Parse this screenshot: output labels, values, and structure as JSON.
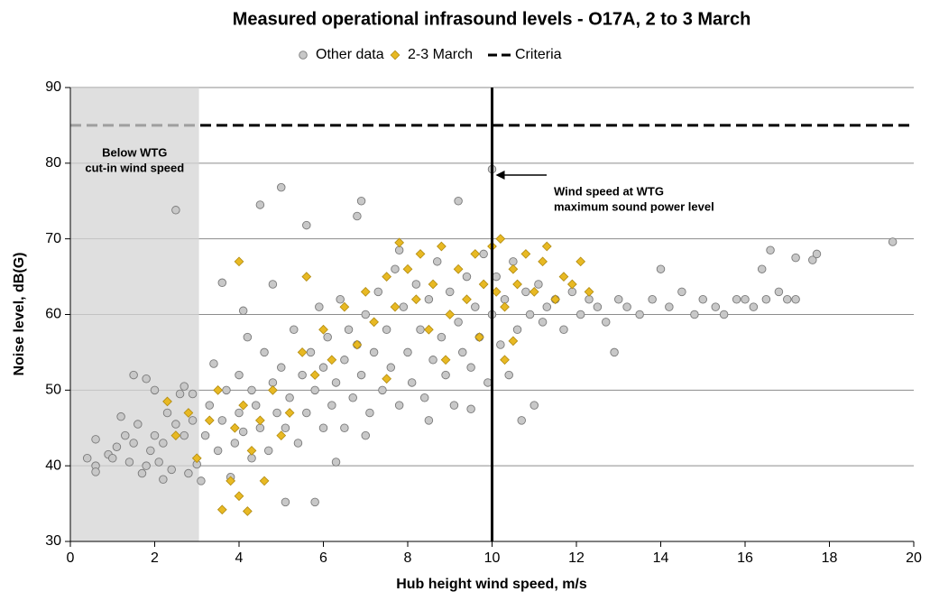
{
  "chart_data": {
    "type": "scatter",
    "title": "Measured operational infrasound levels - O17A, 2 to 3 March",
    "x_label": "Hub height wind speed, m/s",
    "y_label": "Noise level, dB(G)",
    "xlim": [
      0,
      20
    ],
    "xticks": [
      0,
      2,
      4,
      6,
      8,
      10,
      12,
      14,
      16,
      18,
      20
    ],
    "ylim": [
      30,
      90
    ],
    "yticks": [
      30,
      40,
      50,
      60,
      70,
      80,
      90
    ],
    "grid": true,
    "legend": "top",
    "shaded_xrange": [
      0,
      3.05
    ],
    "reference_x": 10,
    "criteria": {
      "name": "Criteria",
      "value": 85,
      "color": "#000000"
    },
    "annotations": [
      {
        "lines": [
          "Below WTG",
          "cut-in wind speed"
        ]
      },
      {
        "lines": [
          "Wind speed at WTG",
          "maximum sound power level"
        ]
      }
    ],
    "series": [
      {
        "name": "Other data",
        "color": "#c8c8c8",
        "marker": "circle",
        "x": [
          0.4,
          0.6,
          0.6,
          0.6,
          0.9,
          1.1,
          1.2,
          1.3,
          1.4,
          1.5,
          1.6,
          1.7,
          1.8,
          1.9,
          2.0,
          2.1,
          2.2,
          2.3,
          2.4,
          2.5,
          2.6,
          2.7,
          2.8,
          2.9,
          3.0,
          1.0,
          1.8,
          2.2,
          2.5,
          2.0,
          1.5,
          2.7,
          2.9,
          3.1,
          3.2,
          3.3,
          3.4,
          3.5,
          3.6,
          3.7,
          3.8,
          3.9,
          4.0,
          4.0,
          4.1,
          4.2,
          4.3,
          4.3,
          4.4,
          4.5,
          4.5,
          4.6,
          4.7,
          4.8,
          4.8,
          4.9,
          5.0,
          5.0,
          5.1,
          5.1,
          5.2,
          5.3,
          5.4,
          5.5,
          5.6,
          5.6,
          5.7,
          5.8,
          5.8,
          5.9,
          6.0,
          6.0,
          3.6,
          4.1,
          6.1,
          6.2,
          6.3,
          6.4,
          6.5,
          6.5,
          6.6,
          6.7,
          6.8,
          6.8,
          6.9,
          6.9,
          7.0,
          7.1,
          7.2,
          7.3,
          7.4,
          7.5,
          7.6,
          7.7,
          7.8,
          7.9,
          8.0,
          8.1,
          8.2,
          8.3,
          8.4,
          8.5,
          8.6,
          8.7,
          8.8,
          8.9,
          9.0,
          9.1,
          9.2,
          9.2,
          9.3,
          9.4,
          9.5,
          9.6,
          9.7,
          9.8,
          9.9,
          10.0,
          10.0,
          6.3,
          7.0,
          7.8,
          8.5,
          9.5,
          10.1,
          10.2,
          10.3,
          10.4,
          10.5,
          10.6,
          10.7,
          10.8,
          10.9,
          11.0,
          11.1,
          11.2,
          11.3,
          11.5,
          11.7,
          11.9,
          12.1,
          12.3,
          12.5,
          12.7,
          12.9,
          13.0,
          13.2,
          13.5,
          13.8,
          14.0,
          14.2,
          14.5,
          14.8,
          15.0,
          15.3,
          15.5,
          15.8,
          16.0,
          16.2,
          16.5,
          16.6,
          16.8,
          17.0,
          17.2,
          17.2,
          17.6,
          17.7,
          19.5,
          16.4
        ],
        "values": [
          41,
          40,
          39.2,
          43.5,
          41.5,
          42.5,
          46.5,
          44,
          40.5,
          52,
          45.5,
          39,
          51.5,
          42,
          50,
          40.5,
          43,
          47,
          39.5,
          73.8,
          49.5,
          44,
          39,
          46,
          40.2,
          41,
          40,
          38.2,
          45.5,
          44,
          43,
          50.5,
          49.5,
          38,
          44,
          48,
          53.5,
          42,
          46,
          50,
          38.5,
          43,
          47,
          52,
          44.5,
          57,
          41,
          50,
          48,
          74.5,
          45,
          55,
          42,
          64,
          51,
          47,
          76.8,
          53,
          35.2,
          45,
          49,
          58,
          43,
          52,
          71.8,
          47,
          55,
          35.2,
          50,
          61,
          45,
          53,
          64.2,
          60.5,
          57,
          48,
          51,
          62,
          45,
          54,
          58,
          49,
          73,
          56,
          75,
          52,
          60,
          47,
          55,
          63,
          50,
          58,
          53,
          66,
          48,
          61,
          55,
          51,
          64,
          58,
          49,
          62,
          54,
          67,
          57,
          52,
          63,
          48,
          75,
          59,
          55,
          65,
          53,
          61,
          57,
          68,
          51,
          79.2,
          60,
          40.5,
          44,
          68.5,
          46,
          47.5,
          65,
          56,
          62,
          52,
          67,
          58,
          46,
          63,
          60,
          48,
          64,
          59,
          61,
          62,
          58,
          63,
          60,
          62,
          61,
          59,
          55,
          62,
          61,
          60,
          62,
          66,
          61,
          63,
          60,
          62,
          61,
          60,
          62,
          62,
          61,
          62,
          68.5,
          63,
          62,
          67.5,
          62,
          67.2,
          68,
          69.6,
          66
        ]
      },
      {
        "name": "2-3 March",
        "color": "#e8b923",
        "marker": "diamond",
        "x": [
          2.3,
          2.5,
          2.8,
          3.0,
          3.3,
          3.5,
          3.6,
          3.8,
          3.9,
          4.0,
          4.0,
          4.1,
          4.2,
          4.3,
          4.5,
          4.6,
          4.8,
          5.0,
          5.2,
          5.5,
          5.6,
          5.8,
          6.0,
          6.2,
          6.5,
          6.8,
          7.0,
          7.2,
          7.5,
          7.7,
          7.8,
          8.0,
          8.2,
          8.3,
          8.5,
          8.6,
          8.8,
          9.0,
          9.2,
          9.4,
          9.6,
          9.8,
          10.0,
          10.1,
          10.2,
          10.3,
          10.5,
          10.6,
          10.8,
          11.0,
          11.2,
          11.3,
          11.5,
          11.7,
          11.9,
          12.1,
          12.3,
          7.5,
          8.9,
          9.7,
          10.3,
          10.5
        ],
        "values": [
          48.5,
          44,
          47,
          41,
          46,
          50,
          34.2,
          38,
          45,
          67,
          36,
          48,
          34,
          42,
          46,
          38,
          50,
          44,
          47,
          55,
          65,
          52,
          58,
          54,
          61,
          56,
          63,
          59,
          65,
          61,
          69.5,
          66,
          62,
          68,
          58,
          64,
          69,
          60,
          66,
          62,
          68,
          64,
          69,
          63,
          70,
          61,
          66,
          64,
          68,
          63,
          67,
          69,
          62,
          65,
          64,
          67,
          63,
          51.5,
          54,
          57,
          54,
          56.5
        ]
      }
    ]
  }
}
